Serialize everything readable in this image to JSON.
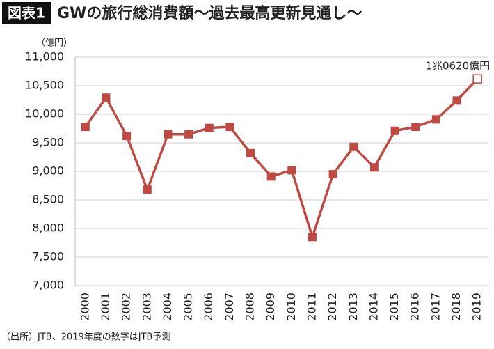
{
  "chart_data": {
    "type": "line",
    "figure_label": "図表1",
    "title": "GWの旅行総消費額〜過去最高更新見通し〜",
    "y_unit": "（億円）",
    "annotation": "1兆0620億円",
    "source": "（出所）JTB、2019年度の数字はJTB予測",
    "categories": [
      "2000",
      "2001",
      "2002",
      "2003",
      "2004",
      "2005",
      "2006",
      "2007",
      "2008",
      "2009",
      "2010",
      "2011",
      "2012",
      "2013",
      "2014",
      "2015",
      "2016",
      "2017",
      "2018",
      "2019"
    ],
    "series": [
      {
        "color": "#bf4a44",
        "values": [
          9780,
          10290,
          9620,
          8680,
          9650,
          9650,
          9760,
          9780,
          9320,
          8910,
          9020,
          7850,
          8950,
          9430,
          9070,
          9710,
          9780,
          9910,
          10240,
          10620
        ]
      }
    ],
    "hollow_last_marker": true,
    "ylim": [
      7000,
      11000
    ],
    "yticks": [
      {
        "value": 7000,
        "label": "7,000"
      },
      {
        "value": 7500,
        "label": "7,500"
      },
      {
        "value": 8000,
        "label": "8,000"
      },
      {
        "value": 8500,
        "label": "8,500"
      },
      {
        "value": 9000,
        "label": "9,000"
      },
      {
        "value": 9500,
        "label": "9,500"
      },
      {
        "value": 10000,
        "label": "10,000"
      },
      {
        "value": 10500,
        "label": "10,500"
      },
      {
        "value": 11000,
        "label": "11,000"
      }
    ],
    "grid": true
  }
}
